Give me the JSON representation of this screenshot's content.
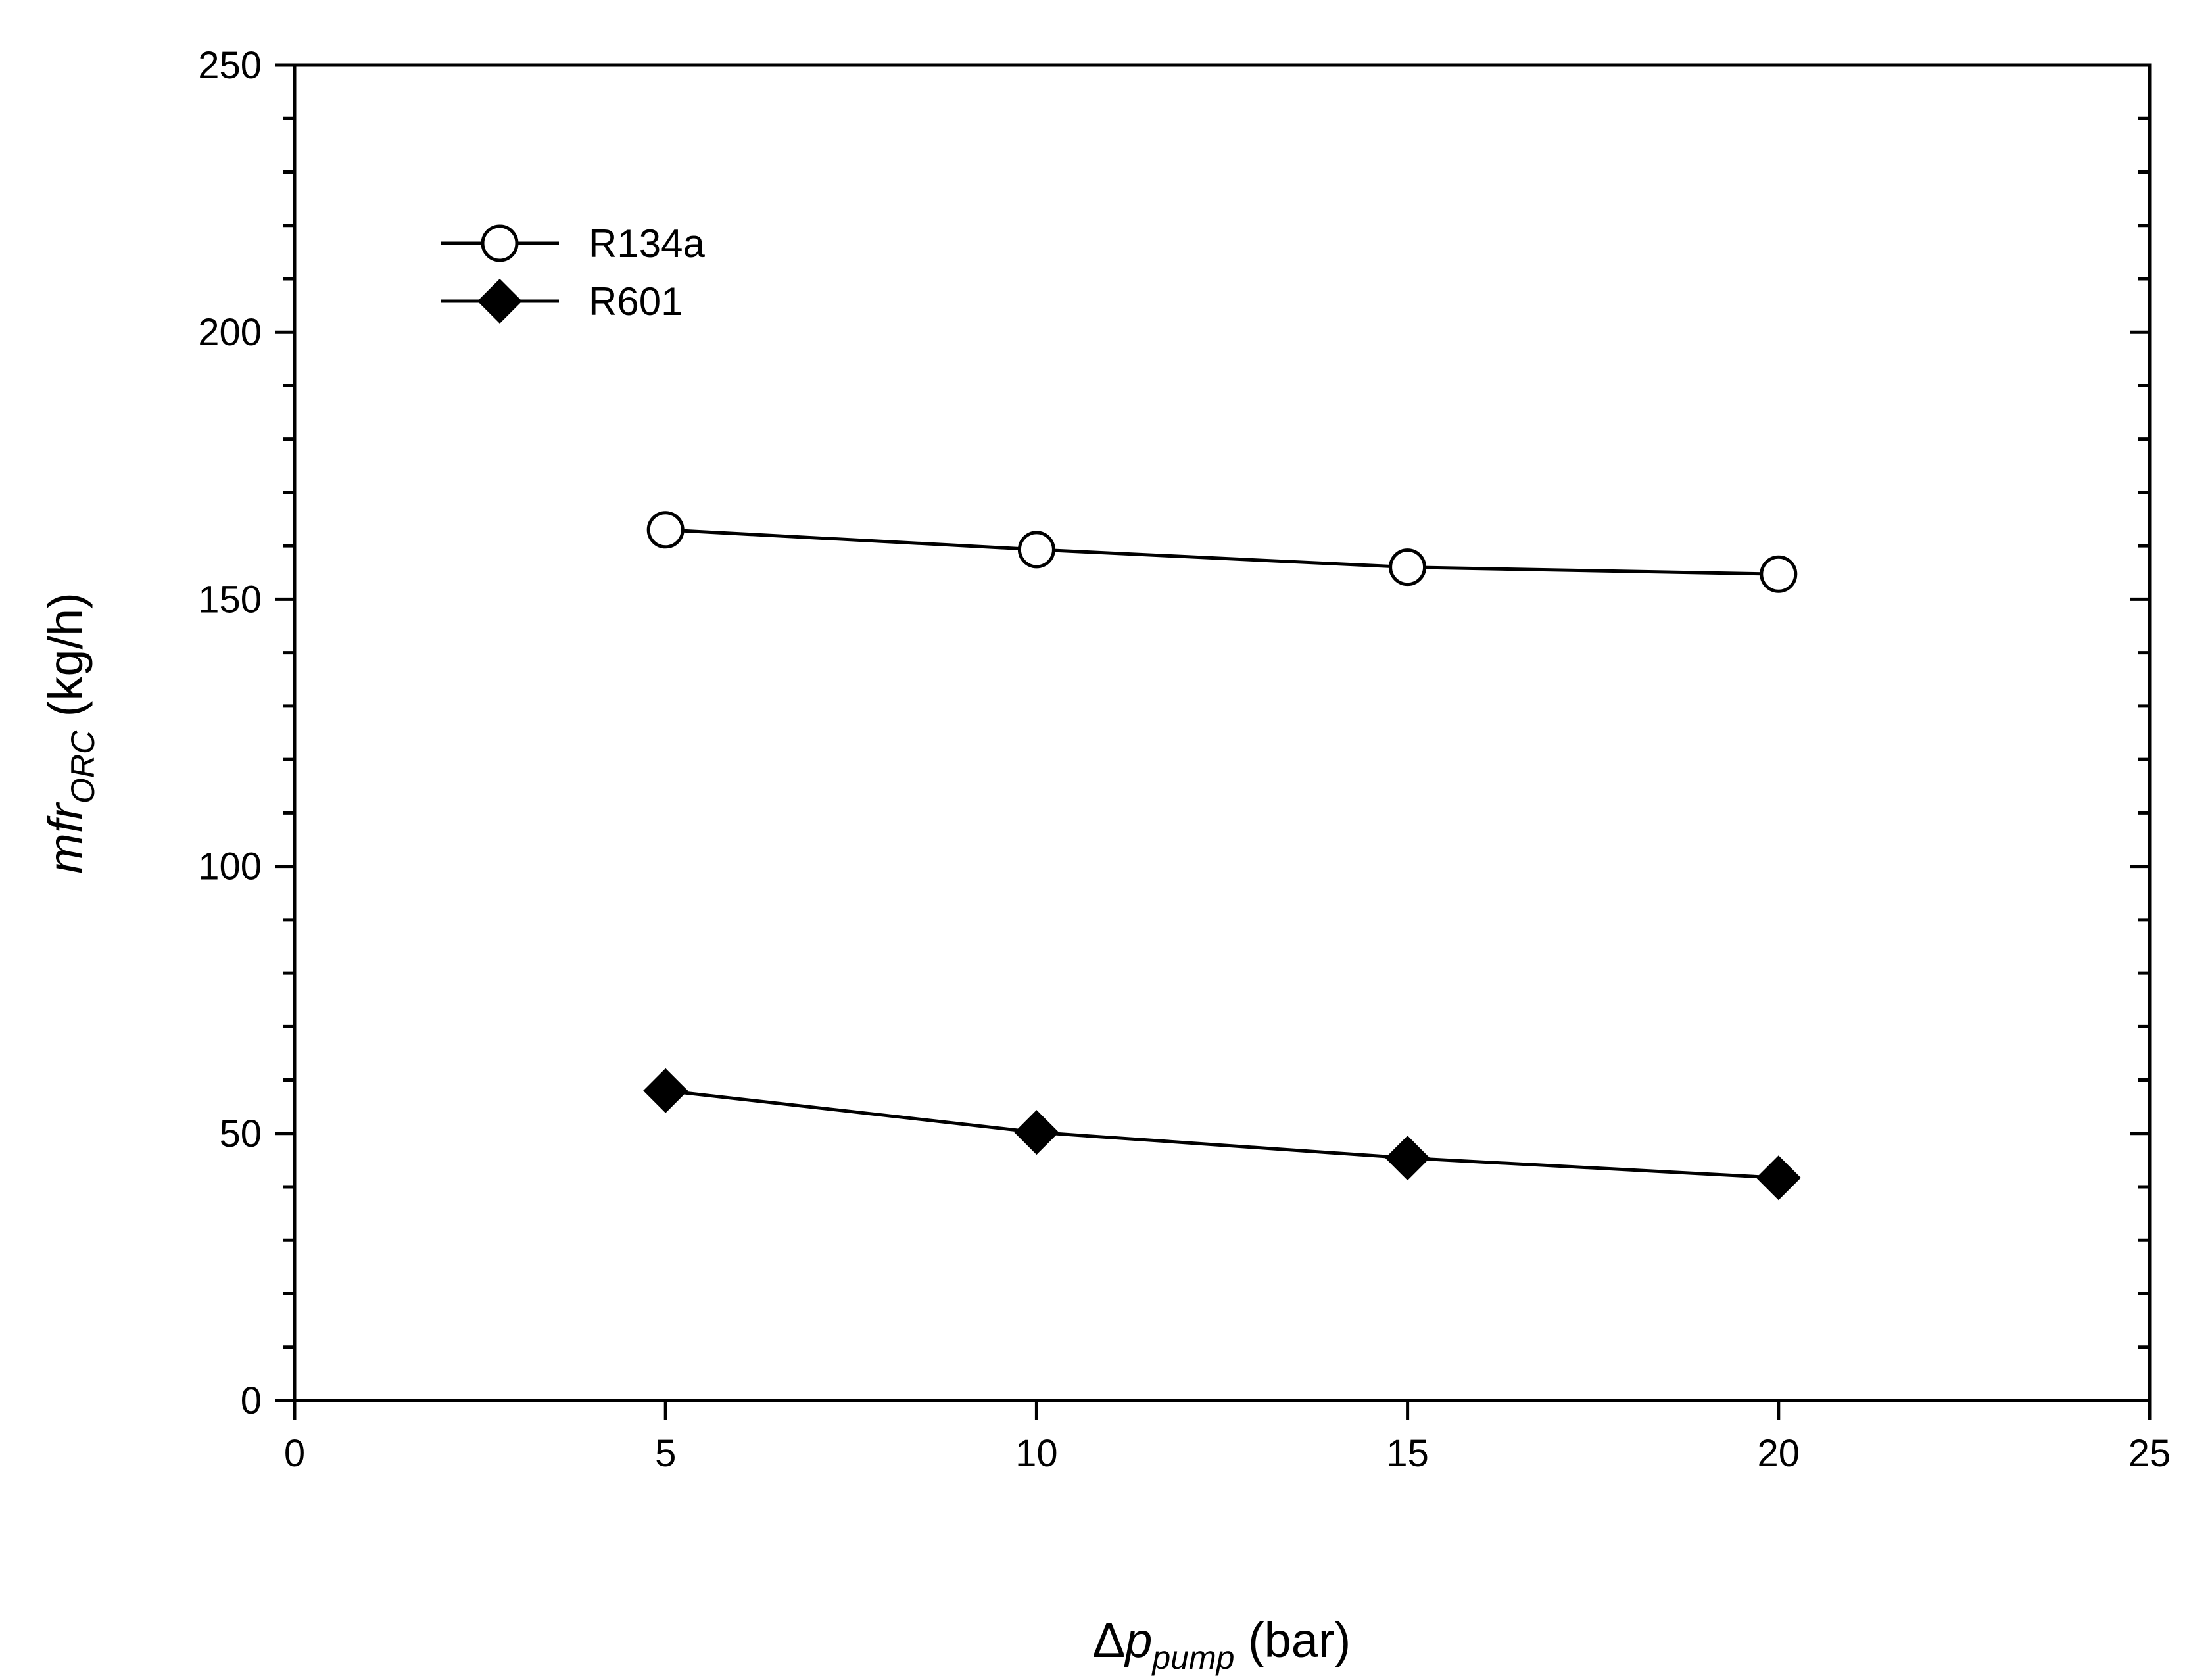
{
  "chart_data": {
    "type": "line",
    "title": "",
    "xlabel": {
      "main": "Δ",
      "italic": "p",
      "sub": "pump",
      "unit": " (bar)"
    },
    "ylabel": {
      "italic": "mfr",
      "sub": "ORC",
      "unit": " (kg/h)"
    },
    "xlim": [
      0,
      25
    ],
    "ylim": [
      0,
      250
    ],
    "xticks": [
      0,
      5,
      10,
      15,
      20,
      25
    ],
    "yticks": [
      0,
      50,
      100,
      150,
      200,
      250
    ],
    "y_minor_step": 10,
    "grid": false,
    "legend_placement": "top-left",
    "x": [
      5,
      10,
      15,
      20
    ],
    "series": [
      {
        "name": "R134a",
        "marker": "open-circle",
        "color": "#000000",
        "values": [
          163.0,
          159.3,
          156.0,
          154.7
        ]
      },
      {
        "name": "R601",
        "marker": "filled-diamond",
        "color": "#000000",
        "values": [
          58.0,
          50.2,
          45.4,
          41.7
        ]
      }
    ]
  }
}
